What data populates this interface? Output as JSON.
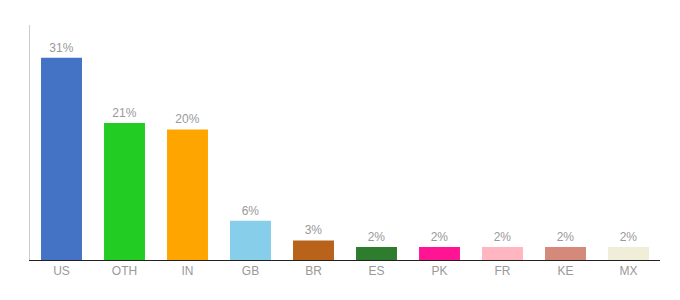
{
  "chart_data": {
    "type": "bar",
    "categories": [
      "US",
      "OTH",
      "IN",
      "GB",
      "BR",
      "ES",
      "PK",
      "FR",
      "KE",
      "MX"
    ],
    "values": [
      31,
      21,
      20,
      6,
      3,
      2,
      2,
      2,
      2,
      2
    ],
    "value_labels": [
      "31%",
      "21%",
      "20%",
      "6%",
      "3%",
      "2%",
      "2%",
      "2%",
      "2%",
      "2%"
    ],
    "colors": [
      "#4472C4",
      "#22CC22",
      "#FFA500",
      "#87CEEB",
      "#B8621A",
      "#2E7D2E",
      "#FF1493",
      "#FFB6C1",
      "#D4897A",
      "#F0EDD8"
    ],
    "ylim": [
      0,
      36
    ],
    "grid": false,
    "data_labels": true,
    "tick_labels": "x"
  }
}
